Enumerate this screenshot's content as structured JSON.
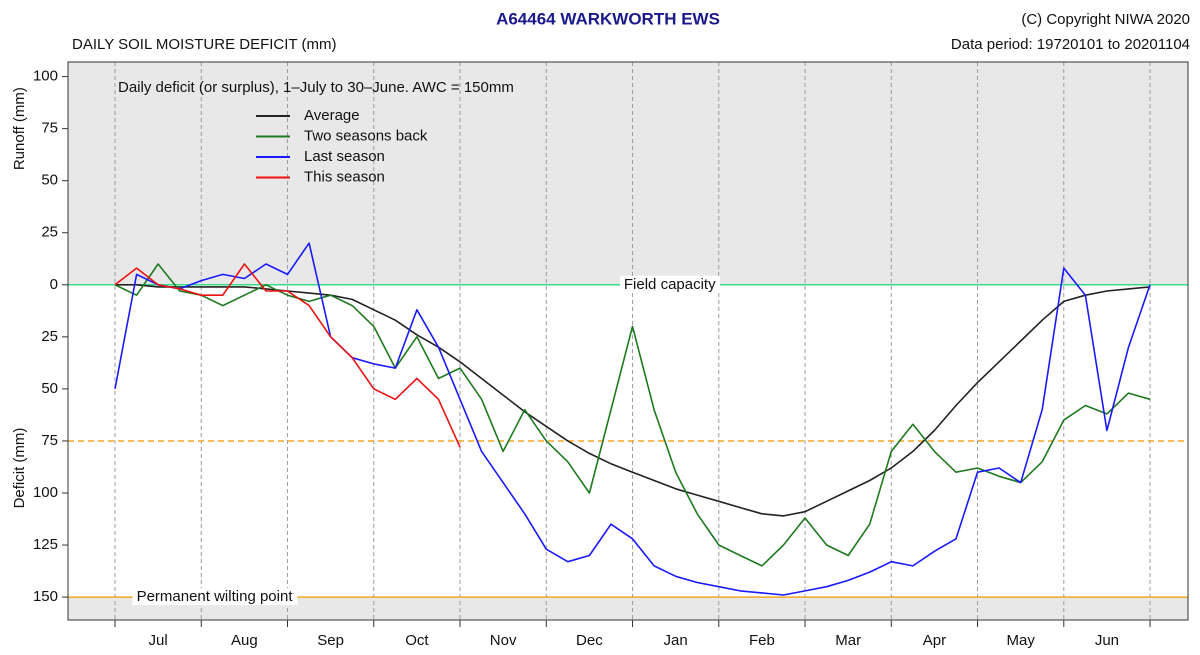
{
  "chart_data": {
    "type": "line",
    "title": "A64464  WARKWORTH EWS",
    "subtitle": "DAILY SOIL MOISTURE DEFICIT (mm)",
    "copyright": "(C) Copyright NIWA  2020",
    "data_period": "Data period:  19720101  to  20201104",
    "annotation": "Daily deficit (or surplus), 1–July to 30–June.  AWC = 150mm",
    "ylabel_top": "Runoff (mm)",
    "ylabel_bottom": "Deficit (mm)",
    "categories": [
      "Jul",
      "Aug",
      "Sep",
      "Oct",
      "Nov",
      "Dec",
      "Jan",
      "Feb",
      "Mar",
      "Apr",
      "May",
      "Jun"
    ],
    "x": [
      0,
      0.25,
      0.5,
      0.75,
      1,
      1.25,
      1.5,
      1.75,
      2,
      2.25,
      2.5,
      2.75,
      3,
      3.25,
      3.5,
      3.75,
      4,
      4.25,
      4.5,
      4.75,
      5,
      5.25,
      5.5,
      5.75,
      6,
      6.25,
      6.5,
      6.75,
      7,
      7.25,
      7.5,
      7.75,
      8,
      8.25,
      8.5,
      8.75,
      9,
      9.25,
      9.5,
      9.75,
      10,
      10.25,
      10.5,
      10.75,
      11,
      11.25,
      11.5,
      11.75,
      12
    ],
    "xlim": [
      -0.545,
      12.44
    ],
    "ylim": [
      -161,
      107
    ],
    "yticks": [
      100,
      75,
      50,
      25,
      0,
      {
        "value": -25,
        "label": "25"
      },
      {
        "value": -50,
        "label": "50"
      },
      {
        "value": -75,
        "label": "75"
      },
      {
        "value": -100,
        "label": "100"
      },
      {
        "value": -125,
        "label": "125"
      },
      {
        "value": -150,
        "label": "150"
      }
    ],
    "grid": true,
    "legend": "upper-left",
    "series": [
      {
        "name": "Average",
        "color": "#222222",
        "values": [
          0,
          0,
          -1,
          -1,
          -1,
          -1,
          -1,
          -2,
          -3,
          -4,
          -5,
          -7,
          -12,
          -17,
          -24,
          -30,
          -37,
          -45,
          -53,
          -61,
          -68,
          -75,
          -81,
          -86,
          -90,
          -94,
          -98,
          -101,
          -104,
          -107,
          -110,
          -111,
          -109,
          -104,
          -99,
          -94,
          -88,
          -80,
          -70,
          -58,
          -47,
          -37,
          -27,
          -17,
          -8,
          -5,
          -3,
          -2,
          -1
        ]
      },
      {
        "name": "Two seasons back",
        "color": "#1e7a1e",
        "values": [
          0,
          -5,
          10,
          -3,
          -5,
          -10,
          -5,
          0,
          -5,
          -8,
          -5,
          -10,
          -20,
          -40,
          -25,
          -45,
          -40,
          -55,
          -80,
          -60,
          -75,
          -85,
          -100,
          -60,
          -20,
          -60,
          -90,
          -110,
          -125,
          -130,
          -135,
          -125,
          -112,
          -125,
          -130,
          -115,
          -80,
          -67,
          -80,
          -90,
          -88,
          -92,
          -95,
          -85,
          -65,
          -58,
          -62,
          -52,
          -55
        ]
      },
      {
        "name": "Last season",
        "color": "#1a1aff",
        "values": [
          -50,
          5,
          0,
          -2,
          2,
          5,
          3,
          10,
          5,
          20,
          -25,
          -35,
          -38,
          -40,
          -12,
          -30,
          -55,
          -80,
          -95,
          -110,
          -127,
          -133,
          -130,
          -115,
          -122,
          -135,
          -140,
          -143,
          -145,
          -147,
          -148,
          -149,
          -147,
          -145,
          -142,
          -138,
          -133,
          -135,
          -128,
          -122,
          -90,
          -88,
          -95,
          -60,
          8,
          -5,
          -70,
          -30,
          0
        ]
      },
      {
        "name": "This season",
        "color": "#ee1111",
        "values": [
          0,
          8,
          0,
          -2,
          -5,
          -5,
          10,
          -3,
          -3,
          -10,
          -25,
          -35,
          -50,
          -55,
          -45,
          -55,
          -78,
          null,
          null,
          null,
          null,
          null,
          null,
          null,
          null,
          null,
          null,
          null,
          null,
          null,
          null,
          null,
          null,
          null,
          null,
          null,
          null,
          null,
          null,
          null,
          null,
          null,
          null,
          null,
          null,
          null,
          null,
          null,
          null
        ]
      }
    ],
    "reference_lines": [
      {
        "value": 0,
        "label": "Field capacity",
        "color": "#33dd88",
        "dashed": false
      },
      {
        "value": -75,
        "color": "#f5a623",
        "dashed": true
      },
      {
        "value": -150,
        "label": "Permanent wilting point",
        "color": "#f5a623",
        "dashed": false
      }
    ],
    "shade_color": "#e8e8e8"
  }
}
